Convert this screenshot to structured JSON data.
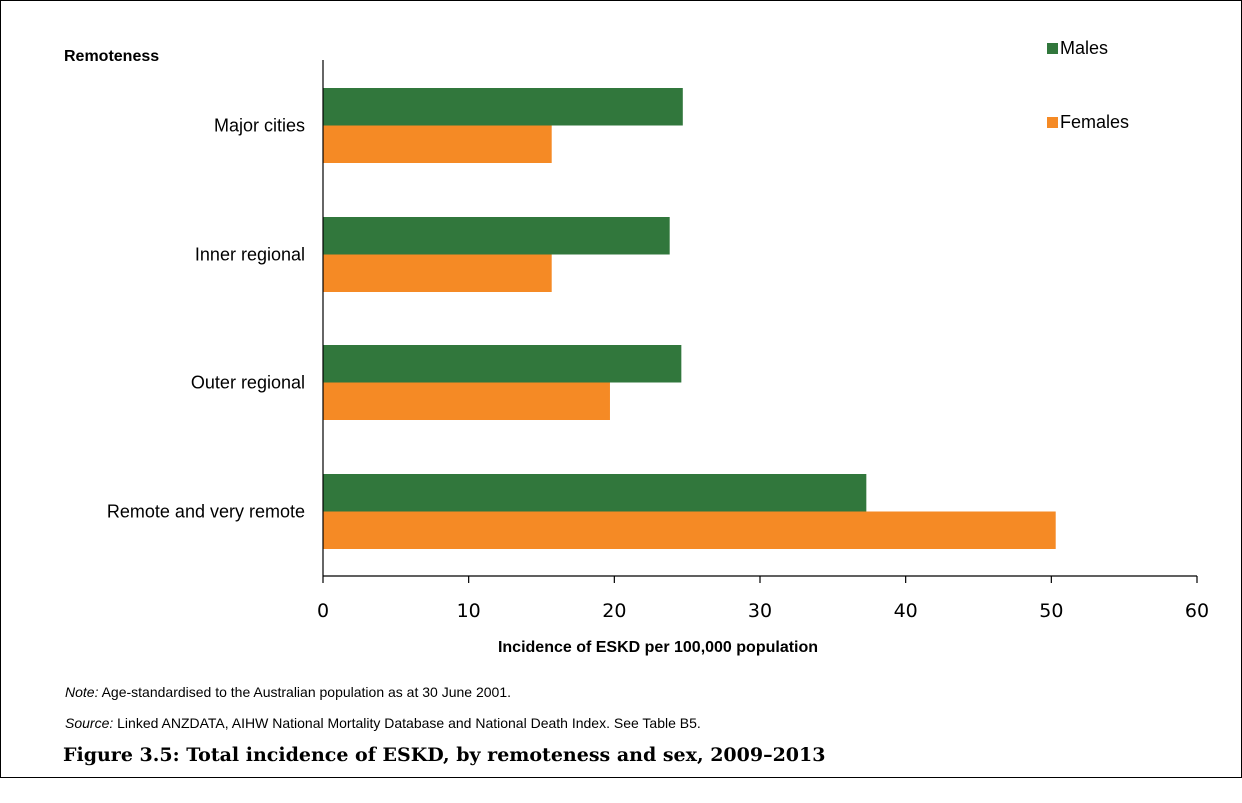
{
  "chart_data": {
    "type": "bar",
    "orientation": "horizontal",
    "category_axis_title": "Remoteness",
    "categories": [
      "Major cities",
      "Inner regional",
      "Outer regional",
      "Remote and very remote"
    ],
    "series": [
      {
        "name": "Males",
        "color": "#31773c",
        "values": [
          24.7,
          23.8,
          24.6,
          37.3
        ]
      },
      {
        "name": "Females",
        "color": "#f58a25",
        "values": [
          15.7,
          15.7,
          19.7,
          50.3
        ]
      }
    ],
    "xlabel": "Incidence of ESKD per 100,000 population",
    "xlim": [
      0,
      60
    ],
    "xticks": [
      0,
      10,
      20,
      30,
      40,
      50,
      60
    ],
    "grid": false,
    "legend_position": "top-right"
  },
  "notes": {
    "note_label": "Note:",
    "note_text": " Age-standardised to the Australian population as at 30 June 2001.",
    "source_label": "Source:",
    "source_text": " Linked ANZDATA, AIHW National Mortality Database and National Death Index. See Table B5."
  },
  "caption": "Figure 3.5: Total incidence of ESKD, by remoteness and sex, 2009–2013"
}
